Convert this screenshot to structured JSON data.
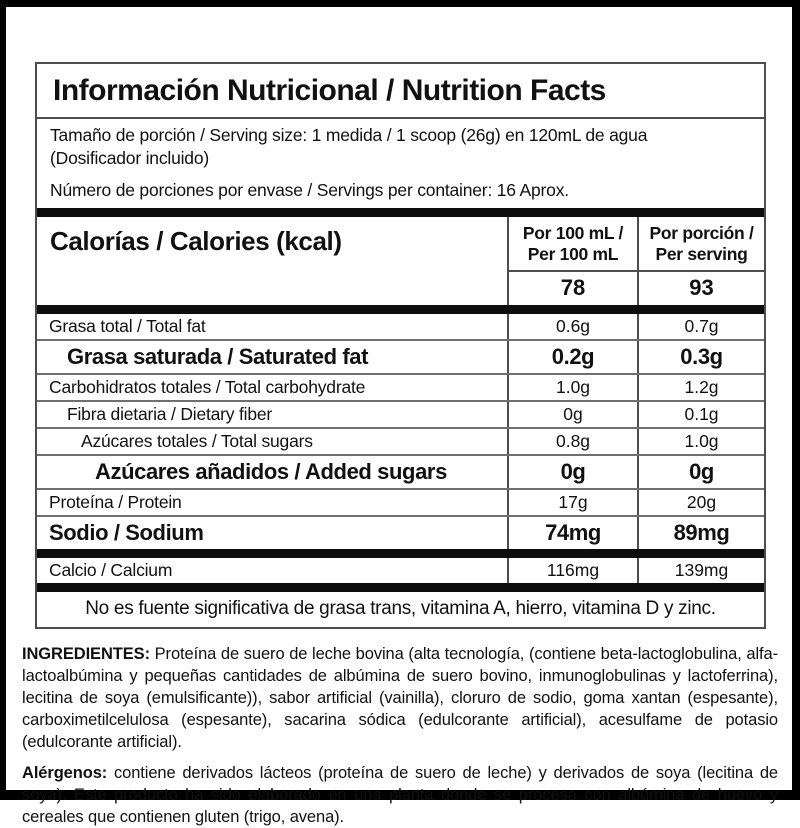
{
  "label": {
    "title": "Información Nutricional / Nutrition Facts",
    "serving": {
      "size_line": "Tamaño de porción / Serving size: 1 medida / 1 scoop (26g) en 120mL de agua",
      "size_note": "(Dosificador incluido)",
      "per_container": "Número de porciones por envase / Servings per container: 16 Aprox."
    },
    "calories": {
      "label": "Calorías / Calories (kcal)",
      "col1_header": "Por 100 mL / Per 100 mL",
      "col2_header": "Por porción / Per serving",
      "col1_value": "78",
      "col2_value": "93"
    },
    "rows": [
      {
        "label": "Grasa total / Total fat",
        "per100": "0.6g",
        "perserving": "0.7g"
      },
      {
        "label": "Grasa saturada / Saturated fat",
        "per100": "0.2g",
        "perserving": "0.3g"
      },
      {
        "label": "Carbohidratos totales / Total carbohydrate",
        "per100": "1.0g",
        "perserving": "1.2g"
      },
      {
        "label": "Fibra dietaria / Dietary fiber",
        "per100": "0g",
        "perserving": "0.1g"
      },
      {
        "label": "Azúcares totales / Total sugars",
        "per100": "0.8g",
        "perserving": "1.0g"
      },
      {
        "label": "Azúcares añadidos / Added sugars",
        "per100": "0g",
        "perserving": "0g"
      },
      {
        "label": "Proteína / Protein",
        "per100": "17g",
        "perserving": "20g"
      },
      {
        "label": "Sodio / Sodium",
        "per100": "74mg",
        "perserving": "89mg"
      },
      {
        "label": "Calcio / Calcium",
        "per100": "116mg",
        "perserving": "139mg"
      }
    ],
    "footnote": "No es fuente significativa de grasa trans, vitamina A, hierro, vitamina D y zinc.",
    "colors": {
      "frame": "#000000",
      "border": "#4d4d4d",
      "thick_bar": "#0d0d0d",
      "text": "#111111",
      "background": "#ffffff"
    }
  },
  "ingredients": {
    "heading": "INGREDIENTES:",
    "text": "Proteína de suero de leche bovina (alta tecnología, (contiene beta-lactoglobulina, alfa-lactoalbúmina y pequeñas cantidades de albúmina de suero bovino, inmunoglobulinas y lactoferrina), lecitina de soya (emulsificante)), sabor artificial (vainilla), cloruro de sodio, goma xantan (espesante), carboximetilcelulosa (espesante), sacarina sódica (edulcorante artificial), acesulfame de potasio (edulcorante artificial)."
  },
  "allergens": {
    "heading": "Alérgenos:",
    "text": "contiene derivados lácteos (proteína de suero de leche) y derivados de soya (lecitina de soya). Este producto ha sido elaborado en una planta donde se procesa con albúmina de huevo y cereales que contienen gluten (trigo, avena)."
  }
}
